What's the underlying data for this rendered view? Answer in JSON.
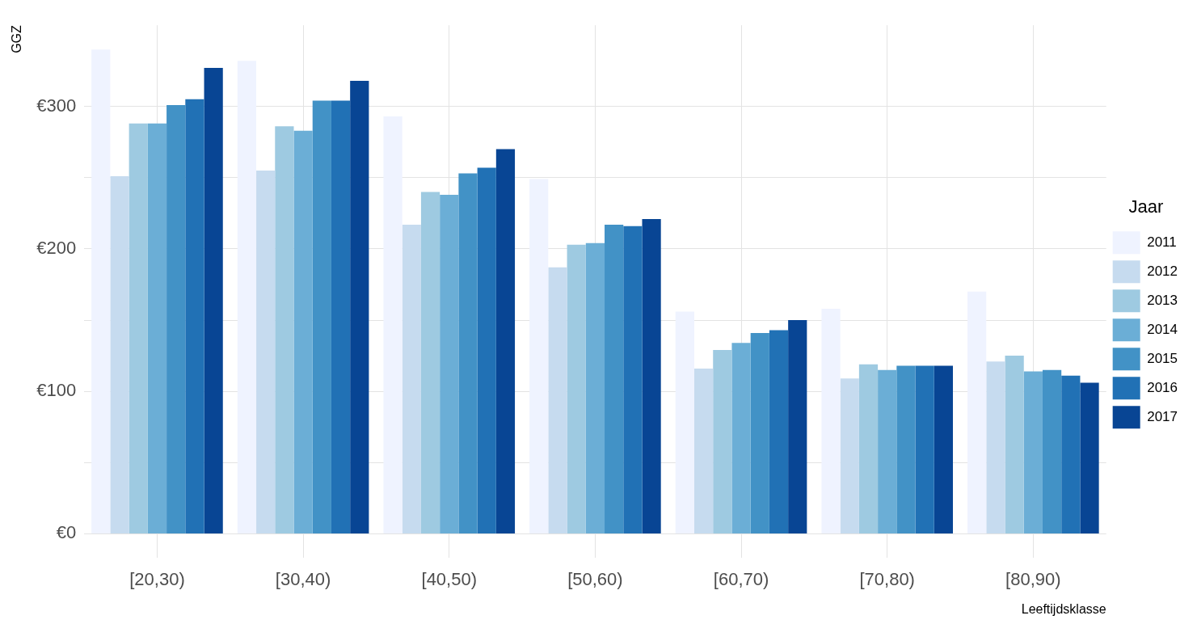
{
  "chart_data": {
    "type": "bar",
    "xlabel": "Leeftijdsklasse",
    "ylabel": "GGZ",
    "legend_title": "Jaar",
    "legend": "right",
    "grid": true,
    "categories": [
      "[20,30)",
      "[30,40)",
      "[40,50)",
      "[50,60)",
      "[60,70)",
      "[70,80)",
      "[80,90)"
    ],
    "ylim": [
      -17,
      357
    ],
    "yticks": [
      {
        "value": 0,
        "label": "€0"
      },
      {
        "value": 50,
        "label": null
      },
      {
        "value": 100,
        "label": "€100"
      },
      {
        "value": 150,
        "label": null
      },
      {
        "value": 200,
        "label": "€200"
      },
      {
        "value": 250,
        "label": null
      },
      {
        "value": 300,
        "label": "€300"
      }
    ],
    "series": [
      {
        "name": "2011",
        "color": "#eff3ff",
        "values": [
          340,
          332,
          293,
          249,
          156,
          158,
          170
        ]
      },
      {
        "name": "2012",
        "color": "#c6dbef",
        "values": [
          251,
          255,
          217,
          187,
          116,
          109,
          121
        ]
      },
      {
        "name": "2013",
        "color": "#9ecae1",
        "values": [
          288,
          286,
          240,
          203,
          129,
          119,
          125
        ]
      },
      {
        "name": "2014",
        "color": "#6baed6",
        "values": [
          288,
          283,
          238,
          204,
          134,
          115,
          114
        ]
      },
      {
        "name": "2015",
        "color": "#4292c6",
        "values": [
          301,
          304,
          253,
          217,
          141,
          118,
          115
        ]
      },
      {
        "name": "2016",
        "color": "#2171b5",
        "values": [
          305,
          304,
          257,
          216,
          143,
          118,
          111
        ]
      },
      {
        "name": "2017",
        "color": "#084594",
        "values": [
          327,
          318,
          270,
          221,
          150,
          118,
          106
        ]
      }
    ]
  }
}
